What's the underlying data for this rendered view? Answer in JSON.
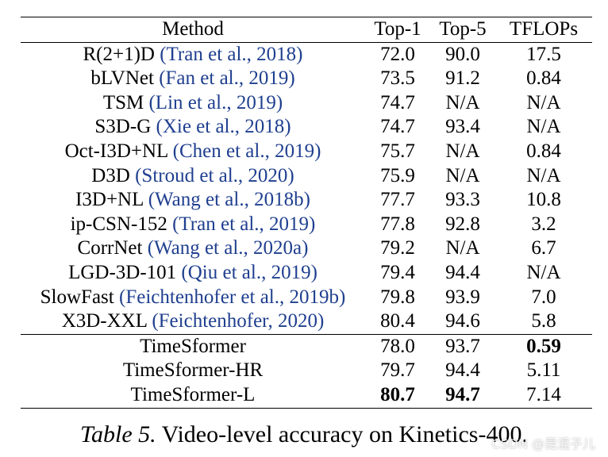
{
  "table": {
    "headers": [
      "Method",
      "Top-1",
      "Top-5",
      "TFLOPs"
    ],
    "baselines": [
      {
        "method": "R(2+1)D",
        "cite": "(Tran et al., 2018)",
        "top1": "72.0",
        "top5": "90.0",
        "tflops": "17.5"
      },
      {
        "method": "bLVNet",
        "cite": "(Fan et al., 2019)",
        "top1": "73.5",
        "top5": "91.2",
        "tflops": "0.84"
      },
      {
        "method": "TSM",
        "cite": "(Lin et al., 2019)",
        "top1": "74.7",
        "top5": "N/A",
        "tflops": "N/A"
      },
      {
        "method": "S3D-G",
        "cite": "(Xie et al., 2018)",
        "top1": "74.7",
        "top5": "93.4",
        "tflops": "N/A"
      },
      {
        "method": "Oct-I3D+NL",
        "cite": "(Chen et al., 2019)",
        "top1": "75.7",
        "top5": "N/A",
        "tflops": "0.84"
      },
      {
        "method": "D3D",
        "cite": "(Stroud et al., 2020)",
        "top1": "75.9",
        "top5": "N/A",
        "tflops": "N/A"
      },
      {
        "method": "I3D+NL",
        "cite": "(Wang et al., 2018b)",
        "top1": "77.7",
        "top5": "93.3",
        "tflops": "10.8"
      },
      {
        "method": "ip-CSN-152",
        "cite": "(Tran et al., 2019)",
        "top1": "77.8",
        "top5": "92.8",
        "tflops": "3.2"
      },
      {
        "method": "CorrNet",
        "cite": "(Wang et al., 2020a)",
        "top1": "79.2",
        "top5": "N/A",
        "tflops": "6.7"
      },
      {
        "method": "LGD-3D-101",
        "cite": "(Qiu et al., 2019)",
        "top1": "79.4",
        "top5": "94.4",
        "tflops": "N/A"
      },
      {
        "method": "SlowFast",
        "cite": "(Feichtenhofer et al., 2019b)",
        "top1": "79.8",
        "top5": "93.9",
        "tflops": "7.0"
      },
      {
        "method": "X3D-XXL",
        "cite": "(Feichtenhofer, 2020)",
        "top1": "80.4",
        "top5": "94.6",
        "tflops": "5.8"
      }
    ],
    "ours": [
      {
        "method": "TimeSformer",
        "top1": "78.0",
        "top5": "93.7",
        "tflops": "0.59"
      },
      {
        "method": "TimeSformer-HR",
        "top1": "79.7",
        "top5": "94.4",
        "tflops": "5.11"
      },
      {
        "method": "TimeSformer-L",
        "top1": "80.7",
        "top5": "94.7",
        "tflops": "7.14"
      }
    ]
  },
  "caption": {
    "label": "Table 5.",
    "text": "Video-level accuracy on Kinetics-400."
  },
  "watermark": "CSDN @昆混子儿"
}
